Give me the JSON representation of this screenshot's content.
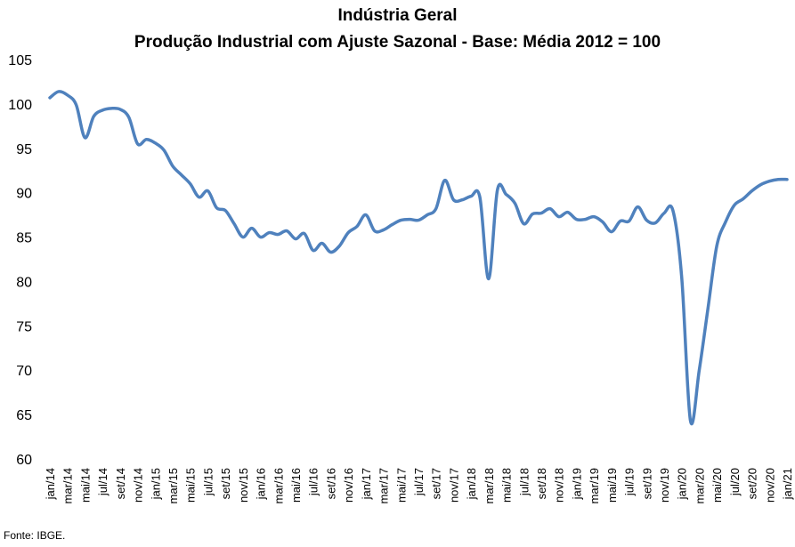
{
  "chart_data": {
    "type": "line",
    "title": "Indústria Geral",
    "subtitle": "Produção Industrial com Ajuste Sazonal - Base: Média 2012 = 100",
    "xlabel": "",
    "ylabel": "",
    "ylim": [
      60,
      105
    ],
    "yticks": [
      60,
      65,
      70,
      75,
      80,
      85,
      90,
      95,
      100,
      105
    ],
    "grid": false,
    "legend": "none",
    "color": "#4F81BD",
    "x": [
      "jan/14",
      "fev/14",
      "mar/14",
      "abr/14",
      "mai/14",
      "jun/14",
      "jul/14",
      "ago/14",
      "set/14",
      "out/14",
      "nov/14",
      "dez/14",
      "jan/15",
      "fev/15",
      "mar/15",
      "abr/15",
      "mai/15",
      "jun/15",
      "jul/15",
      "ago/15",
      "set/15",
      "out/15",
      "nov/15",
      "dez/15",
      "jan/16",
      "fev/16",
      "mar/16",
      "abr/16",
      "mai/16",
      "jun/16",
      "jul/16",
      "ago/16",
      "set/16",
      "out/16",
      "nov/16",
      "dez/16",
      "jan/17",
      "fev/17",
      "mar/17",
      "abr/17",
      "mai/17",
      "jun/17",
      "jul/17",
      "ago/17",
      "set/17",
      "out/17",
      "nov/17",
      "dez/17",
      "jan/18",
      "fev/18",
      "mar/18",
      "abr/18",
      "mai/18",
      "jun/18",
      "jul/18",
      "ago/18",
      "set/18",
      "out/18",
      "nov/18",
      "dez/18",
      "jan/19",
      "fev/19",
      "mar/19",
      "abr/19",
      "mai/19",
      "jun/19",
      "jul/19",
      "ago/19",
      "set/19",
      "out/19",
      "nov/19",
      "dez/19",
      "jan/20",
      "fev/20",
      "mar/20",
      "abr/20",
      "mai/20",
      "jun/20",
      "jul/20",
      "ago/20",
      "set/20",
      "out/20",
      "nov/20",
      "dez/20",
      "jan/21"
    ],
    "xticklabels": [
      "jan/14",
      "mar/14",
      "mai/14",
      "jul/14",
      "set/14",
      "nov/14",
      "jan/15",
      "mar/15",
      "mai/15",
      "jul/15",
      "set/15",
      "nov/15",
      "jan/16",
      "mar/16",
      "mai/16",
      "jul/16",
      "set/16",
      "nov/16",
      "jan/17",
      "mar/17",
      "mai/17",
      "jul/17",
      "set/17",
      "nov/17",
      "jan/18",
      "mar/18",
      "mai/18",
      "jul/18",
      "set/18",
      "nov/18",
      "jan/19",
      "mar/19",
      "mai/19",
      "jul/19",
      "set/19",
      "nov/19",
      "jan/20",
      "mar/20",
      "mai/20",
      "jul/20",
      "set/20",
      "nov/20",
      "jan/21"
    ],
    "series": [
      {
        "values": [
          100.7,
          101.4,
          101.0,
          99.9,
          96.2,
          98.6,
          99.3,
          99.5,
          99.4,
          98.5,
          95.5,
          96.0,
          95.6,
          94.8,
          93.0,
          92.0,
          91.0,
          89.5,
          90.2,
          88.3,
          88.0,
          86.5,
          85.0,
          86.0,
          85.0,
          85.5,
          85.3,
          85.7,
          84.8,
          85.4,
          83.5,
          84.3,
          83.3,
          84.0,
          85.5,
          86.2,
          87.5,
          85.7,
          85.8,
          86.4,
          86.9,
          87.0,
          86.9,
          87.5,
          88.2,
          91.4,
          89.2,
          89.2,
          89.6,
          89.5,
          80.3,
          90.3,
          89.8,
          88.8,
          86.5,
          87.6,
          87.7,
          88.2,
          87.3,
          87.8,
          87.0,
          87.0,
          87.3,
          86.7,
          85.6,
          86.8,
          86.8,
          88.4,
          86.9,
          86.6,
          87.7,
          88.0,
          80.5,
          64.3,
          70.0,
          77.0,
          84.0,
          86.7,
          88.6,
          89.3,
          90.2,
          90.9,
          91.3,
          91.5,
          91.5
        ]
      }
    ]
  },
  "footer": {
    "source": "Fonte: IBGE."
  }
}
